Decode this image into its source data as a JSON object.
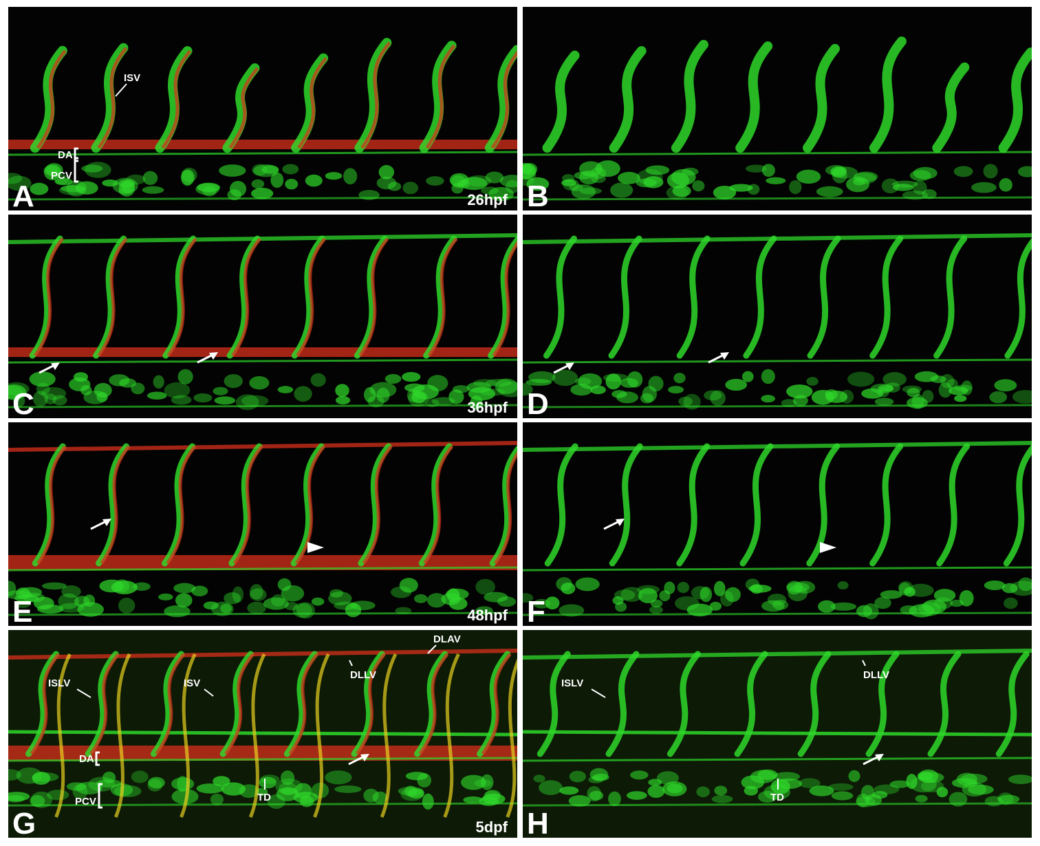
{
  "panels": [
    {
      "letter": "A",
      "stage": "26hpf",
      "labels": [
        "ISV",
        "DA",
        "PCV"
      ]
    },
    {
      "letter": "B"
    },
    {
      "letter": "C",
      "stage": "36hpf"
    },
    {
      "letter": "D"
    },
    {
      "letter": "E",
      "stage": "48hpf"
    },
    {
      "letter": "F"
    },
    {
      "letter": "G",
      "stage": "5dpf",
      "labels": [
        "DLAV",
        "ISLV",
        "ISV",
        "DLLV",
        "DA",
        "TD",
        "PCV"
      ]
    },
    {
      "letter": "H",
      "labels": [
        "ISLV",
        "DLLV",
        "TD"
      ]
    }
  ]
}
